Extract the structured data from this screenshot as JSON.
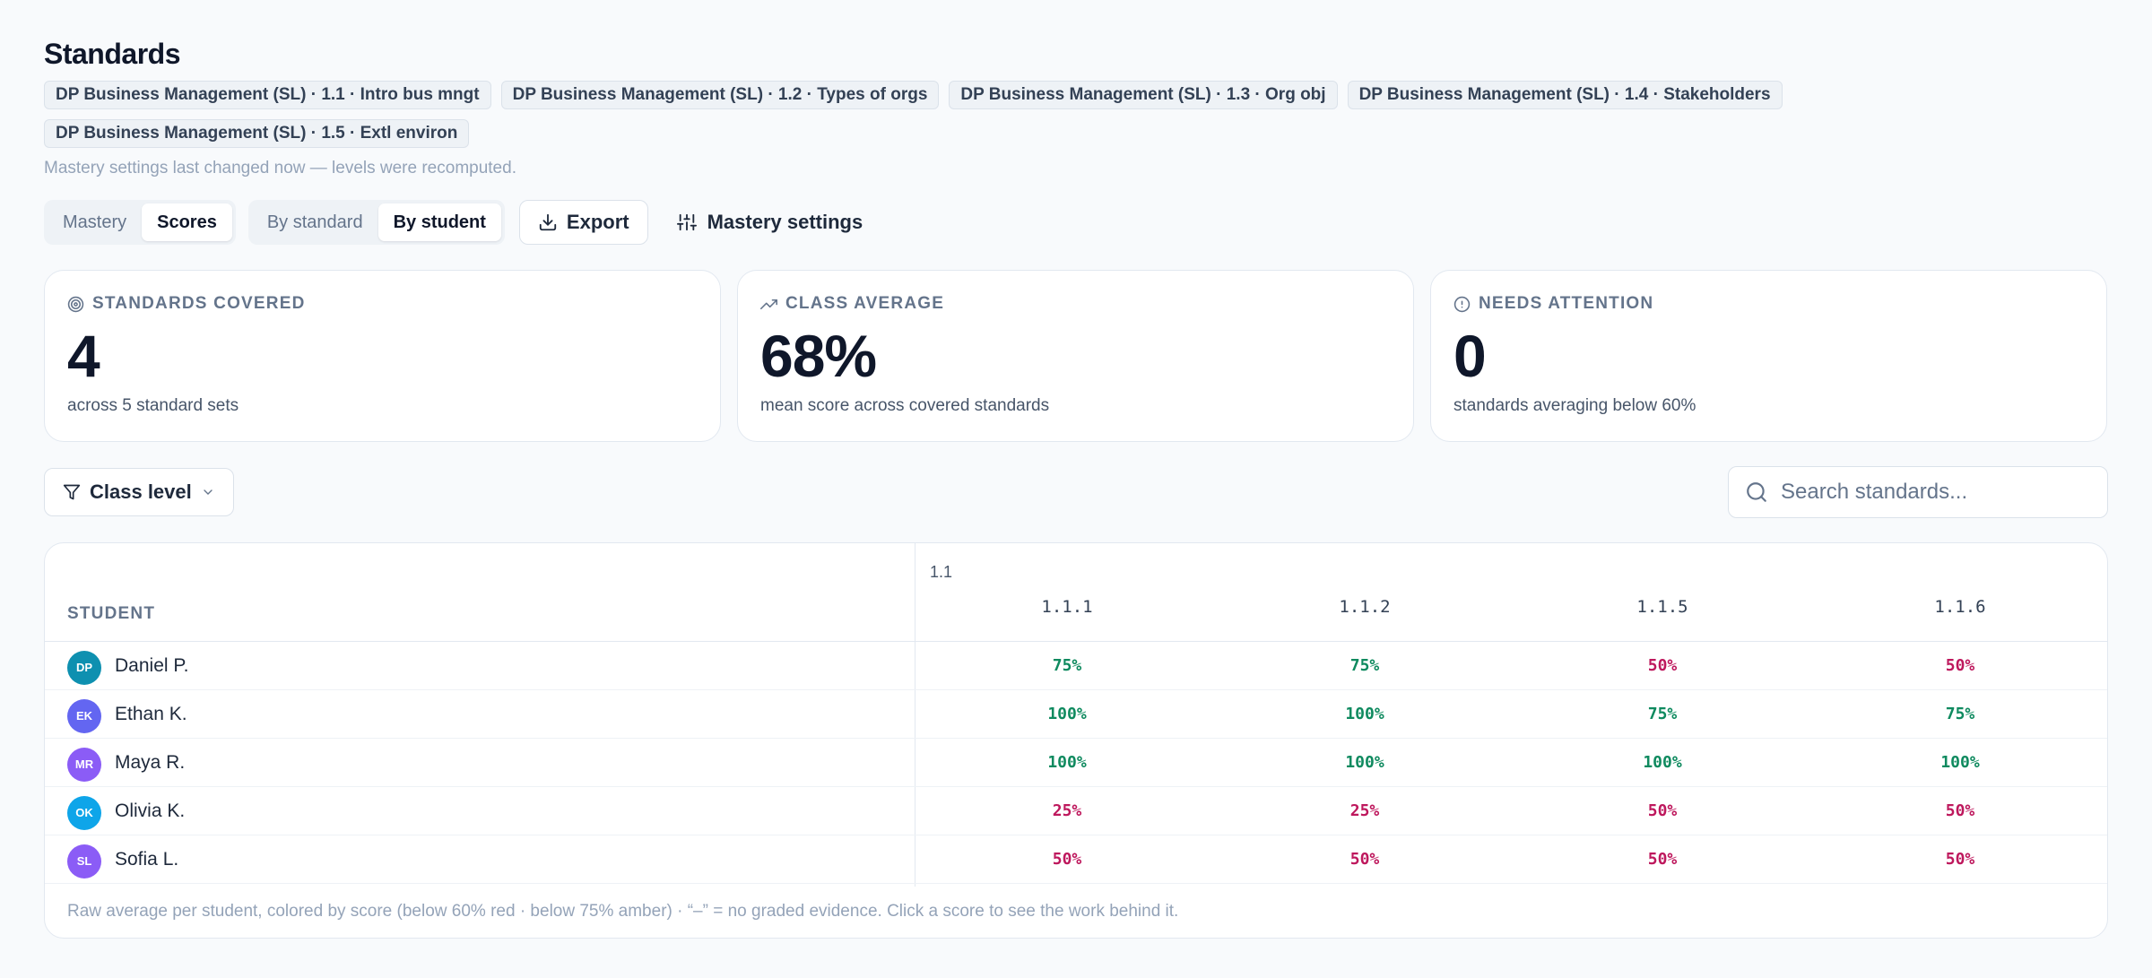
{
  "header": {
    "title": "Standards",
    "chips": [
      "DP Business Management (SL) · 1.1 · Intro bus mngt",
      "DP Business Management (SL) · 1.2 · Types of orgs",
      "DP Business Management (SL) · 1.3 · Org obj",
      "DP Business Management (SL) · 1.4 · Stakeholders",
      "DP Business Management (SL) · 1.5 · Extl environ"
    ],
    "note": "Mastery settings last changed now — levels were recomputed."
  },
  "toolbar": {
    "view_tabs": [
      {
        "label": "Mastery",
        "active": false
      },
      {
        "label": "Scores",
        "active": true
      }
    ],
    "group_tabs": [
      {
        "label": "By standard",
        "active": false
      },
      {
        "label": "By student",
        "active": true
      }
    ],
    "export_label": "Export",
    "mastery_settings_label": "Mastery settings"
  },
  "stats": [
    {
      "icon": "target-icon",
      "label": "STANDARDS COVERED",
      "value": "4",
      "sub": "across 5 standard sets"
    },
    {
      "icon": "trending-up-icon",
      "label": "CLASS AVERAGE",
      "value": "68%",
      "sub": "mean score across covered standards"
    },
    {
      "icon": "alert-circle-icon",
      "label": "NEEDS ATTENTION",
      "value": "0",
      "sub": "standards averaging below 60%"
    }
  ],
  "filter": {
    "label": "Class level",
    "search_placeholder": "Search standards..."
  },
  "table": {
    "student_header": "STUDENT",
    "group_label": "1.1",
    "standards": [
      "1.1.1",
      "1.1.2",
      "1.1.5",
      "1.1.6"
    ],
    "rows": [
      {
        "initials": "DP",
        "name": "Daniel P.",
        "avatar_color": "#0e90b0",
        "scores": [
          "75%",
          "75%",
          "50%",
          "50%"
        ]
      },
      {
        "initials": "EK",
        "name": "Ethan K.",
        "avatar_color": "#6366f1",
        "scores": [
          "100%",
          "100%",
          "75%",
          "75%"
        ]
      },
      {
        "initials": "MR",
        "name": "Maya R.",
        "avatar_color": "#8b5cf6",
        "scores": [
          "100%",
          "100%",
          "100%",
          "100%"
        ]
      },
      {
        "initials": "OK",
        "name": "Olivia K.",
        "avatar_color": "#0ea5e9",
        "scores": [
          "25%",
          "25%",
          "50%",
          "50%"
        ]
      },
      {
        "initials": "SL",
        "name": "Sofia L.",
        "avatar_color": "#8b5cf6",
        "scores": [
          "50%",
          "50%",
          "50%",
          "50%"
        ]
      }
    ],
    "footnote": "Raw average per student, colored by score (below 60% red · below 75% amber) · “–” = no graded evidence. Click a score to see the work behind it."
  },
  "colors": {
    "good": "#0f8a5f",
    "bad": "#be185d",
    "text": "#0f172a",
    "muted": "#64748b"
  }
}
